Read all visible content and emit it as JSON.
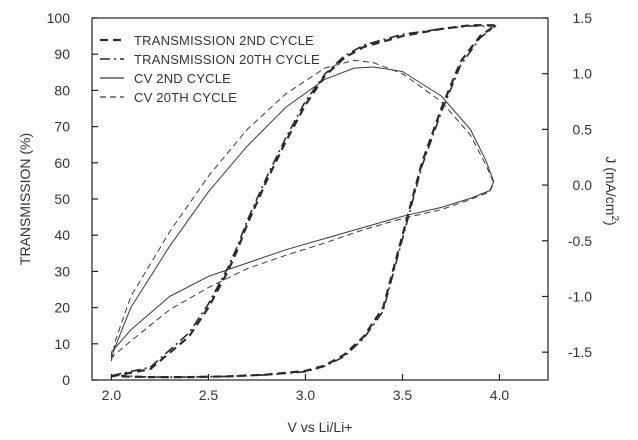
{
  "chart_data": {
    "type": "line",
    "title": "",
    "xlabel": "V vs Li/Li+",
    "ylabel": "TRANSMISSION (%)",
    "y2label_main": "J (mA/cm",
    "y2label_sup": "2",
    "y2label_close": ")",
    "xlim": [
      1.9,
      4.25
    ],
    "ylim": [
      0,
      100
    ],
    "y2lim": [
      -1.75,
      1.5
    ],
    "xticks": [
      2.0,
      2.5,
      3.0,
      3.5,
      4.0
    ],
    "xtick_labels": [
      "2.0",
      "2.5",
      "3.0",
      "3.5",
      "4.0"
    ],
    "yticks": [
      0,
      10,
      20,
      30,
      40,
      50,
      60,
      70,
      80,
      90,
      100
    ],
    "ytick_labels": [
      "0",
      "10",
      "20",
      "30",
      "40",
      "50",
      "60",
      "70",
      "80",
      "90",
      "100"
    ],
    "y2ticks": [
      -1.5,
      -1.0,
      -0.5,
      0.0,
      0.5,
      1.0,
      1.5
    ],
    "y2tick_labels": [
      "-1.5",
      "-1.0",
      "-0.5",
      "0.0",
      "0.5",
      "1.0",
      "1.5"
    ],
    "grid": false,
    "legend_position": "top-left",
    "series": [
      {
        "name": "TRANSMISSION 2ND CYCLE",
        "axis": "left",
        "style": "dashed",
        "x": [
          2.0,
          2.2,
          2.4,
          2.5,
          2.6,
          2.65,
          2.7,
          2.8,
          2.9,
          3.0,
          3.1,
          3.2,
          3.3,
          3.5,
          3.7,
          3.85,
          3.98,
          3.9,
          3.8,
          3.7,
          3.6,
          3.55,
          3.5,
          3.45,
          3.4,
          3.3,
          3.2,
          3.1,
          3.0,
          2.8,
          2.6,
          2.4,
          2.2,
          2.05
        ],
        "y": [
          1,
          3,
          12,
          20,
          30,
          36,
          43,
          55,
          66,
          76,
          84,
          89,
          92,
          95,
          97,
          98,
          98,
          95,
          88,
          75,
          60,
          50,
          40,
          30,
          20,
          12,
          7,
          4,
          2.5,
          1.5,
          1,
          0.8,
          0.8,
          1
        ]
      },
      {
        "name": "TRANSMISSION 20TH CYCLE",
        "axis": "left",
        "style": "dashdot",
        "x": [
          2.0,
          2.2,
          2.4,
          2.5,
          2.6,
          2.65,
          2.7,
          2.8,
          2.9,
          3.0,
          3.1,
          3.2,
          3.3,
          3.5,
          3.7,
          3.85,
          3.98,
          3.9,
          3.8,
          3.7,
          3.6,
          3.55,
          3.5,
          3.45,
          3.4,
          3.3,
          3.2,
          3.1,
          3.0,
          2.8,
          2.6,
          2.4,
          2.2,
          2.05
        ],
        "y": [
          1.2,
          3.5,
          13,
          21,
          31,
          37,
          44,
          56,
          67,
          77,
          84.5,
          89.5,
          92.5,
          95.5,
          97,
          97.8,
          97.8,
          94.5,
          87,
          74,
          59,
          49,
          39,
          29,
          19,
          11.5,
          6.5,
          3.8,
          2.3,
          1.4,
          1,
          0.8,
          0.8,
          1.2
        ]
      },
      {
        "name": "CV 2ND CYCLE",
        "axis": "right",
        "style": "solid",
        "x": [
          2.0,
          2.02,
          2.1,
          2.3,
          2.5,
          2.7,
          2.9,
          3.1,
          3.25,
          3.35,
          3.5,
          3.7,
          3.85,
          3.93,
          3.97,
          3.95,
          3.85,
          3.7,
          3.5,
          3.3,
          3.1,
          2.9,
          2.7,
          2.5,
          2.3,
          2.1,
          2.0
        ],
        "y": [
          -1.55,
          -1.45,
          -1.1,
          -0.55,
          -0.06,
          0.35,
          0.7,
          0.95,
          1.05,
          1.06,
          1.02,
          0.8,
          0.5,
          0.22,
          0.03,
          -0.05,
          -0.12,
          -0.2,
          -0.28,
          -0.38,
          -0.48,
          -0.58,
          -0.7,
          -0.82,
          -1.0,
          -1.3,
          -1.5
        ]
      },
      {
        "name": "CV 20TH CYCLE",
        "axis": "right",
        "style": "thin-dashed",
        "x": [
          2.0,
          2.02,
          2.1,
          2.3,
          2.5,
          2.7,
          2.9,
          3.1,
          3.25,
          3.35,
          3.5,
          3.7,
          3.85,
          3.93,
          3.97,
          3.95,
          3.85,
          3.7,
          3.5,
          3.3,
          3.1,
          2.9,
          2.7,
          2.5,
          2.3,
          2.1,
          2.0
        ],
        "y": [
          -1.58,
          -1.4,
          -1.0,
          -0.42,
          0.08,
          0.5,
          0.82,
          1.05,
          1.12,
          1.1,
          1.0,
          0.75,
          0.45,
          0.18,
          0.02,
          -0.06,
          -0.13,
          -0.22,
          -0.3,
          -0.4,
          -0.52,
          -0.63,
          -0.75,
          -0.92,
          -1.12,
          -1.4,
          -1.55
        ]
      }
    ]
  }
}
